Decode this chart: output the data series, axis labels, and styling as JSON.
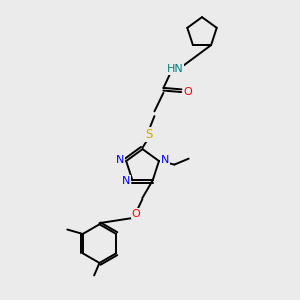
{
  "bg_color": "#ebebeb",
  "bond_color": "#000000",
  "N_color": "#0000ff",
  "O_color": "#ff0000",
  "S_color": "#ccaa00",
  "NH_color": "#008080",
  "line_width": 1.4,
  "figsize": [
    3.0,
    3.0
  ],
  "dpi": 100,
  "xlim": [
    0,
    10
  ],
  "ylim": [
    0,
    10
  ]
}
